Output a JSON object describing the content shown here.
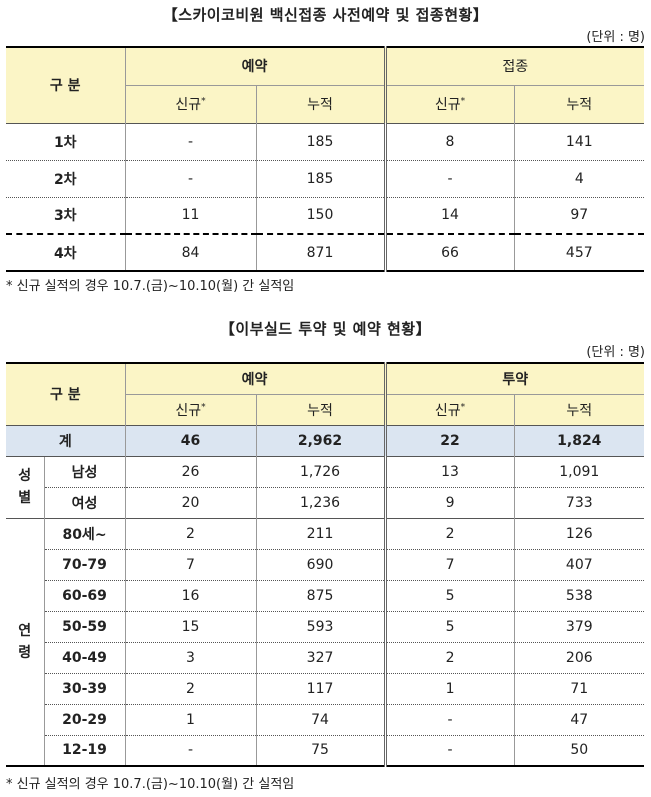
{
  "t1": {
    "title": "【스카이코비원 백신접종 사전예약 및 접종현황】",
    "unit": "(단위 : 명)",
    "header": {
      "category": "구 분",
      "group_a": "예약",
      "group_b": "접종",
      "new": "신규",
      "star": "*",
      "cumulative": "누적"
    },
    "rows": [
      {
        "label": "1차",
        "a_new": "-",
        "a_cum": "185",
        "b_new": "8",
        "b_cum": "141"
      },
      {
        "label": "2차",
        "a_new": "-",
        "a_cum": "185",
        "b_new": "-",
        "b_cum": "4"
      },
      {
        "label": "3차",
        "a_new": "11",
        "a_cum": "150",
        "b_new": "14",
        "b_cum": "97"
      },
      {
        "label": "4차",
        "a_new": "84",
        "a_cum": "871",
        "b_new": "66",
        "b_cum": "457"
      }
    ],
    "note": "* 신규 실적의 경우 10.7.(금)~10.10(월) 간 실적임"
  },
  "t2": {
    "title": "【이부실드 투약 및 예약 현황】",
    "unit": "(단위 : 명)",
    "header": {
      "category": "구 분",
      "group_a": "예약",
      "group_b": "투약",
      "new": "신규",
      "star": "*",
      "cumulative": "누적"
    },
    "total": {
      "label": "계",
      "a_new": "46",
      "a_cum": "2,962",
      "b_new": "22",
      "b_cum": "1,824"
    },
    "gender_group": {
      "char1": "성",
      "char2": "별"
    },
    "gender": [
      {
        "label": "남성",
        "a_new": "26",
        "a_cum": "1,726",
        "b_new": "13",
        "b_cum": "1,091"
      },
      {
        "label": "여성",
        "a_new": "20",
        "a_cum": "1,236",
        "b_new": "9",
        "b_cum": "733"
      }
    ],
    "age_group": {
      "char1": "연",
      "char2": "령"
    },
    "age": [
      {
        "label": "80세~",
        "a_new": "2",
        "a_cum": "211",
        "b_new": "2",
        "b_cum": "126"
      },
      {
        "label": "70-79",
        "a_new": "7",
        "a_cum": "690",
        "b_new": "7",
        "b_cum": "407"
      },
      {
        "label": "60-69",
        "a_new": "16",
        "a_cum": "875",
        "b_new": "5",
        "b_cum": "538"
      },
      {
        "label": "50-59",
        "a_new": "15",
        "a_cum": "593",
        "b_new": "5",
        "b_cum": "379"
      },
      {
        "label": "40-49",
        "a_new": "3",
        "a_cum": "327",
        "b_new": "2",
        "b_cum": "206"
      },
      {
        "label": "30-39",
        "a_new": "2",
        "a_cum": "117",
        "b_new": "1",
        "b_cum": "71"
      },
      {
        "label": "20-29",
        "a_new": "1",
        "a_cum": "74",
        "b_new": "-",
        "b_cum": "47"
      },
      {
        "label": "12-19",
        "a_new": "-",
        "a_cum": "75",
        "b_new": "-",
        "b_cum": "50"
      }
    ],
    "note": "* 신규 실적의 경우 10.7.(금)~10.10(월) 간 실적임"
  }
}
